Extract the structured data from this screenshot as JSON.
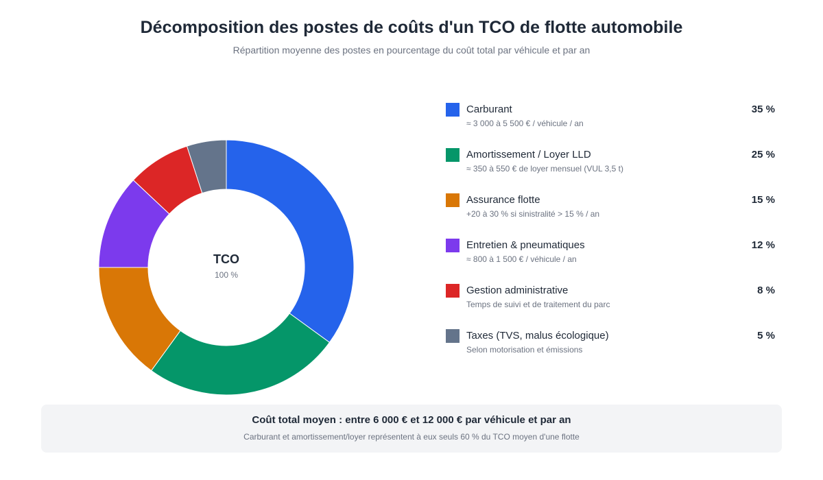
{
  "chart_data": {
    "type": "pie",
    "title": "Décomposition des postes de coûts d'un TCO de flotte automobile",
    "subtitle": "Répartition moyenne des postes en pourcentage du coût total par véhicule et par an",
    "center_label": "TCO",
    "center_value": "100 %",
    "categories": [
      "Carburant",
      "Amortissement / Loyer LLD",
      "Assurance flotte",
      "Entretien & pneumatiques",
      "Gestion administrative",
      "Taxes (TVS, malus écologique)"
    ],
    "values": [
      35,
      25,
      15,
      12,
      8,
      5
    ],
    "value_labels": [
      "35 %",
      "25 %",
      "15 %",
      "12 %",
      "8 %",
      "5 %"
    ],
    "notes": [
      "≈ 3 000 à 5 500 € / véhicule / an",
      "≈ 350 à 550 € de loyer mensuel (VUL 3,5 t)",
      "+20 à 30 % si sinistralité > 15 % / an",
      "≈ 800 à 1 500 € / véhicule / an",
      "Temps de suivi et de traitement du parc",
      "Selon motorisation et émissions"
    ],
    "colors": [
      "#2563eb",
      "#059669",
      "#d97706",
      "#7c3aed",
      "#dc2626",
      "#64748b"
    ],
    "legend_position": "right"
  },
  "footer": {
    "main": "Coût total moyen : entre 6 000 € et 12 000 € par véhicule et par an",
    "note": "Carburant et amortissement/loyer représentent à eux seuls 60 % du TCO moyen d'une flotte"
  }
}
